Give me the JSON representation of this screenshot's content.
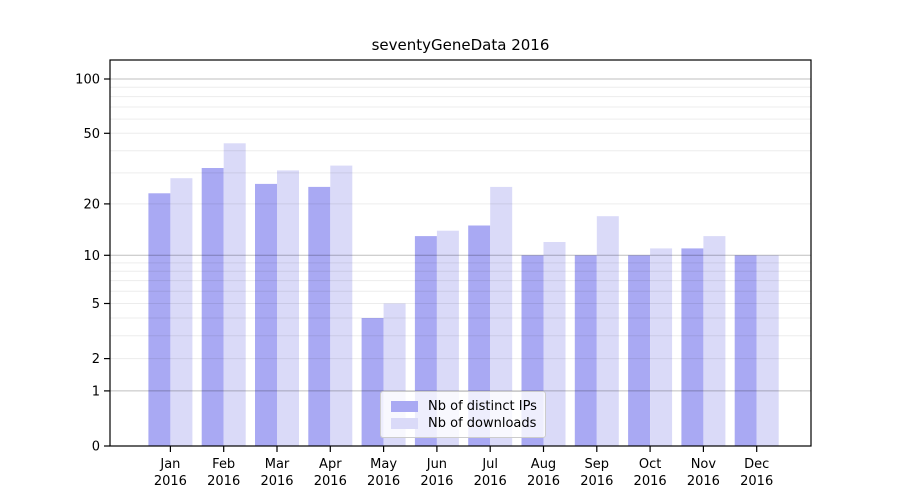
{
  "title": "seventyGeneData 2016",
  "chart_data": {
    "type": "bar",
    "title": "seventyGeneData 2016",
    "scale": "log10(1+y)",
    "ylim": [
      0,
      127
    ],
    "grid": true,
    "legend_position": "bottom-center",
    "categories": [
      {
        "month": "Jan",
        "year": "2016"
      },
      {
        "month": "Feb",
        "year": "2016"
      },
      {
        "month": "Mar",
        "year": "2016"
      },
      {
        "month": "Apr",
        "year": "2016"
      },
      {
        "month": "May",
        "year": "2016"
      },
      {
        "month": "Jun",
        "year": "2016"
      },
      {
        "month": "Jul",
        "year": "2016"
      },
      {
        "month": "Aug",
        "year": "2016"
      },
      {
        "month": "Sep",
        "year": "2016"
      },
      {
        "month": "Oct",
        "year": "2016"
      },
      {
        "month": "Nov",
        "year": "2016"
      },
      {
        "month": "Dec",
        "year": "2016"
      }
    ],
    "series": [
      {
        "name": "Nb of distinct IPs",
        "color": "#a9a9f3",
        "values": [
          23,
          32,
          26,
          25,
          4,
          13,
          15,
          10,
          10,
          10,
          11,
          10
        ]
      },
      {
        "name": "Nb of downloads",
        "color": "#dadaf8",
        "values": [
          28,
          44,
          31,
          33,
          5,
          14,
          25,
          12,
          17,
          11,
          13,
          10
        ]
      }
    ],
    "y_ticks": [
      0,
      1,
      2,
      5,
      10,
      20,
      50,
      100
    ],
    "y_major_gridlines": [
      1,
      10,
      100
    ],
    "y_minor_gridlines": [
      2,
      3,
      4,
      5,
      6,
      7,
      8,
      9,
      20,
      30,
      40,
      50,
      60,
      70,
      80,
      90
    ],
    "colors": {
      "major_grid": "#c2c2c2",
      "minor_grid": "#ececec",
      "axis_frame": "#000000",
      "text": "#000000"
    }
  }
}
